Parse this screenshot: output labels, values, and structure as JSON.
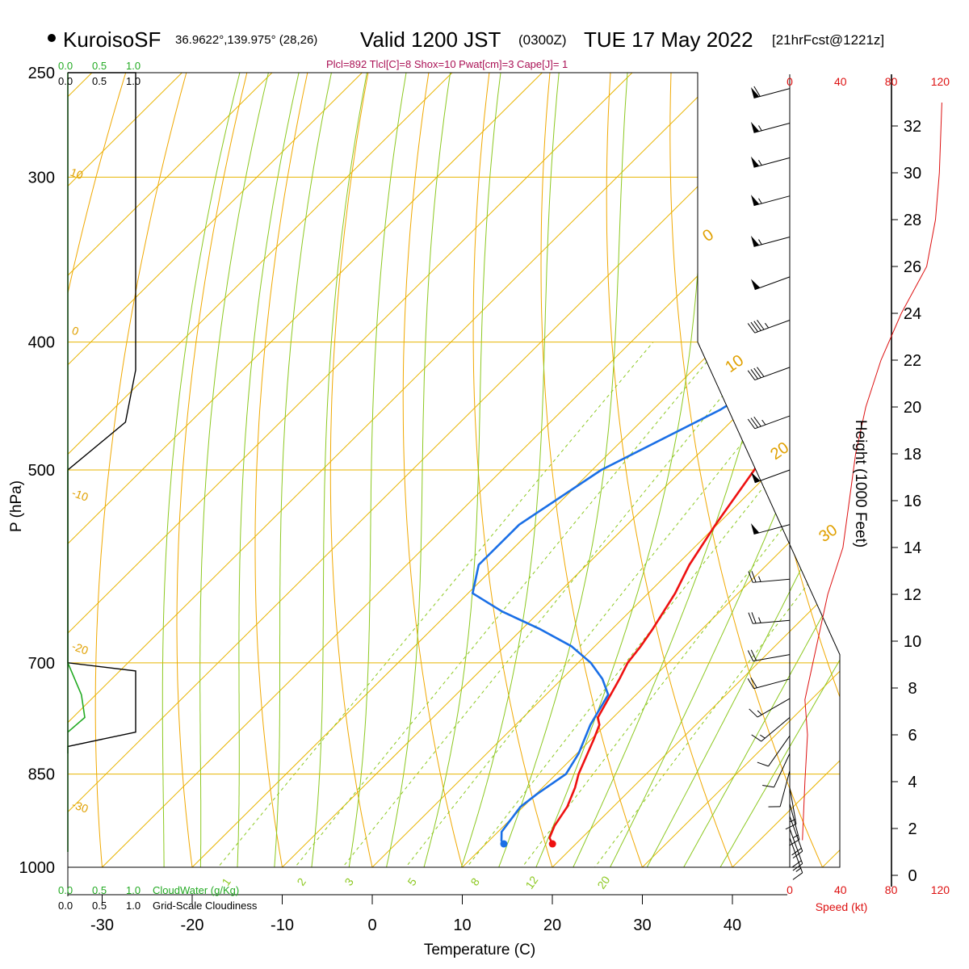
{
  "header": {
    "site": "KuroisoSF",
    "coords": "36.9622°,139.975° (28,26)",
    "valid": "Valid 1200 JST",
    "utc": "(0300Z)",
    "date": "TUE 17 May 2022",
    "fcst": "[21hrFcst@1221z]",
    "indices": "Plcl=892 Tlcl[C]=8 Shox=10 Pwat[cm]=3 Cape[J]= 1"
  },
  "labels": {
    "p_axis": "P (hPa)",
    "t_axis": "Temperature (C)",
    "height_axis": "Height (1000 Feet)",
    "speed_axis": "Speed (kt)",
    "cloudwater": "CloudWater (g/Kg)",
    "cloudiness": "Grid-Scale Cloudiness",
    "cw_ticks": [
      "0.0",
      "0.5",
      "1.0"
    ],
    "gc_ticks": [
      "0.0",
      "0.5",
      "1.0"
    ]
  },
  "colors": {
    "temperature": "#ee1111",
    "dewpoint": "#1a6fe6",
    "isotherm": "#e8b400",
    "dry_adiabat": "#f0a800",
    "moist_adiabat": "#8cc820",
    "mixing_ratio": "#8cc820",
    "cloudwater": "#22aa22",
    "speed": "#dd1111",
    "indices": "#aa1155"
  },
  "chart_data": {
    "type": "skew-t",
    "p_ticks": [
      250,
      300,
      400,
      500,
      700,
      850,
      1000
    ],
    "t_ticks": [
      -30,
      -20,
      -10,
      0,
      10,
      20,
      30,
      40
    ],
    "height_ticks": [
      0,
      2,
      4,
      6,
      8,
      10,
      12,
      14,
      16,
      18,
      20,
      22,
      24,
      26,
      28,
      30,
      32
    ],
    "speed_ticks": [
      0,
      40,
      80,
      120
    ],
    "dry_adiabat_labels": [
      "10",
      "0",
      "-10",
      "-20",
      "-30",
      "0",
      "10",
      "20",
      "30"
    ],
    "mixing_ratio_labels": [
      "1",
      "2",
      "3",
      "5",
      "8",
      "12",
      "20"
    ],
    "temperature_profile": [
      {
        "p": 960,
        "t": 17.4
      },
      {
        "p": 950,
        "t": 16.4
      },
      {
        "p": 930,
        "t": 15.6
      },
      {
        "p": 900,
        "t": 14.9
      },
      {
        "p": 870,
        "t": 13.6
      },
      {
        "p": 850,
        "t": 12.5
      },
      {
        "p": 800,
        "t": 10.3
      },
      {
        "p": 780,
        "t": 9.3
      },
      {
        "p": 770,
        "t": 8.3
      },
      {
        "p": 720,
        "t": 6.4
      },
      {
        "p": 700,
        "t": 5.5
      },
      {
        "p": 680,
        "t": 5.1
      },
      {
        "p": 660,
        "t": 4.5
      },
      {
        "p": 620,
        "t": 3.0
      },
      {
        "p": 590,
        "t": 1.4
      },
      {
        "p": 550,
        "t": -0.2
      },
      {
        "p": 500,
        "t": -2.0
      },
      {
        "p": 450,
        "t": -4.3
      },
      {
        "p": 400,
        "t": -7.1
      },
      {
        "p": 380,
        "t": -8.3
      },
      {
        "p": 360,
        "t": -10.3
      },
      {
        "p": 340,
        "t": -12.8
      },
      {
        "p": 320,
        "t": -15.5
      },
      {
        "p": 300,
        "t": -19.0
      },
      {
        "p": 280,
        "t": -23.3
      },
      {
        "p": 260,
        "t": -27.4
      },
      {
        "p": 255,
        "t": -28.6
      }
    ],
    "dewpoint_profile": [
      {
        "p": 960,
        "t": 12.0
      },
      {
        "p": 955,
        "t": 11.4
      },
      {
        "p": 940,
        "t": 10.4
      },
      {
        "p": 900,
        "t": 9.7
      },
      {
        "p": 880,
        "t": 10.1
      },
      {
        "p": 850,
        "t": 11.1
      },
      {
        "p": 820,
        "t": 10.2
      },
      {
        "p": 780,
        "t": 8.3
      },
      {
        "p": 740,
        "t": 6.9
      },
      {
        "p": 720,
        "t": 4.5
      },
      {
        "p": 700,
        "t": 1.4
      },
      {
        "p": 680,
        "t": -2.6
      },
      {
        "p": 660,
        "t": -8.0
      },
      {
        "p": 640,
        "t": -14.2
      },
      {
        "p": 620,
        "t": -19.5
      },
      {
        "p": 590,
        "t": -22.0
      },
      {
        "p": 550,
        "t": -22.0
      },
      {
        "p": 500,
        "t": -19.0
      },
      {
        "p": 450,
        "t": -12.5
      },
      {
        "p": 400,
        "t": -8.1
      },
      {
        "p": 380,
        "t": -8.0
      },
      {
        "p": 360,
        "t": -10.7
      },
      {
        "p": 340,
        "t": -14.8
      },
      {
        "p": 320,
        "t": -19.4
      },
      {
        "p": 300,
        "t": -26.6
      },
      {
        "p": 280,
        "t": -33.6
      },
      {
        "p": 255,
        "t": -39.8
      }
    ],
    "wind_barbs": [
      {
        "p": 257,
        "dir": 255,
        "spd": 60
      },
      {
        "p": 273,
        "dir": 255,
        "spd": 55
      },
      {
        "p": 290,
        "dir": 255,
        "spd": 55
      },
      {
        "p": 310,
        "dir": 255,
        "spd": 55
      },
      {
        "p": 333,
        "dir": 255,
        "spd": 55
      },
      {
        "p": 357,
        "dir": 250,
        "spd": 50
      },
      {
        "p": 385,
        "dir": 250,
        "spd": 45
      },
      {
        "p": 418,
        "dir": 250,
        "spd": 40
      },
      {
        "p": 455,
        "dir": 250,
        "spd": 35
      },
      {
        "p": 500,
        "dir": 250,
        "spd": 50
      },
      {
        "p": 550,
        "dir": 255,
        "spd": 50
      },
      {
        "p": 605,
        "dir": 265,
        "spd": 25
      },
      {
        "p": 650,
        "dir": 265,
        "spd": 25
      },
      {
        "p": 690,
        "dir": 260,
        "spd": 20
      },
      {
        "p": 720,
        "dir": 255,
        "spd": 20
      },
      {
        "p": 745,
        "dir": 240,
        "spd": 15
      },
      {
        "p": 770,
        "dir": 230,
        "spd": 15
      },
      {
        "p": 795,
        "dir": 215,
        "spd": 10
      },
      {
        "p": 820,
        "dir": 205,
        "spd": 10
      },
      {
        "p": 845,
        "dir": 195,
        "spd": 10
      },
      {
        "p": 870,
        "dir": 170,
        "spd": 15
      },
      {
        "p": 895,
        "dir": 165,
        "spd": 15
      },
      {
        "p": 915,
        "dir": 160,
        "spd": 20
      },
      {
        "p": 935,
        "dir": 160,
        "spd": 20
      },
      {
        "p": 950,
        "dir": 160,
        "spd": 15
      }
    ],
    "speed_profile": [
      {
        "h": 1.5,
        "s": 10
      },
      {
        "h": 4,
        "s": 12
      },
      {
        "h": 6,
        "s": 14
      },
      {
        "h": 7.5,
        "s": 12
      },
      {
        "h": 10,
        "s": 22
      },
      {
        "h": 12,
        "s": 30
      },
      {
        "h": 14,
        "s": 42
      },
      {
        "h": 16,
        "s": 47
      },
      {
        "h": 18,
        "s": 52
      },
      {
        "h": 20,
        "s": 60
      },
      {
        "h": 22,
        "s": 72
      },
      {
        "h": 24,
        "s": 88
      },
      {
        "h": 26,
        "s": 108
      },
      {
        "h": 28,
        "s": 115
      },
      {
        "h": 30,
        "s": 118
      },
      {
        "h": 33,
        "s": 120
      }
    ],
    "cloudiness_profile": [
      {
        "p": 250,
        "v": 1.0
      },
      {
        "p": 420,
        "v": 1.0
      },
      {
        "p": 460,
        "v": 0.85
      },
      {
        "p": 500,
        "v": 0.0
      },
      {
        "p": 700,
        "v": 0.0
      },
      {
        "p": 710,
        "v": 1.0
      },
      {
        "p": 790,
        "v": 1.0
      },
      {
        "p": 810,
        "v": 0.0
      }
    ],
    "cloudwater_profile": [
      {
        "p": 700,
        "v": 0.0
      },
      {
        "p": 740,
        "v": 0.2
      },
      {
        "p": 770,
        "v": 0.25
      },
      {
        "p": 790,
        "v": 0.0
      }
    ]
  }
}
